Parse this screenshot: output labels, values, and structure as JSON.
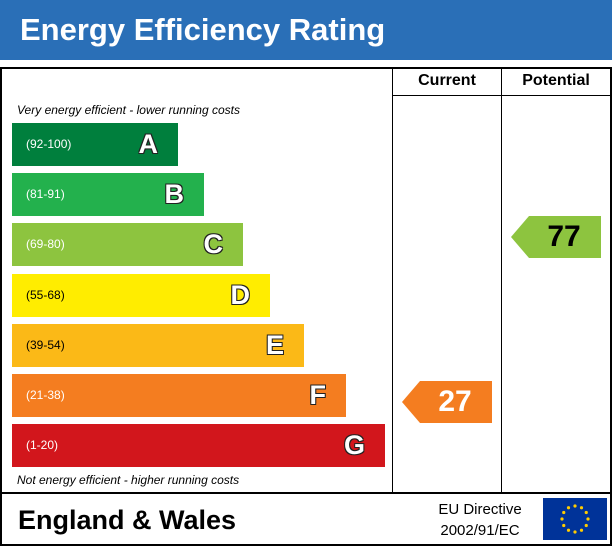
{
  "title": "Energy Efficiency Rating",
  "columns": {
    "current": "Current",
    "potential": "Potential"
  },
  "notes": {
    "top": "Very energy efficient - lower running costs",
    "bottom": "Not energy efficient - higher running costs"
  },
  "chart_data": {
    "type": "bar",
    "categories": [
      "A",
      "B",
      "C",
      "D",
      "E",
      "F",
      "G"
    ],
    "ranges": [
      "(92-100)",
      "(81-91)",
      "(69-80)",
      "(55-68)",
      "(39-54)",
      "(21-38)",
      "(1-20)"
    ],
    "colors": [
      "#007f3d",
      "#23b14d",
      "#8dc43f",
      "#ffed00",
      "#fbb917",
      "#f47d20",
      "#d2161c"
    ],
    "current": {
      "value": 27,
      "band": "F",
      "color": "#f47d20"
    },
    "potential": {
      "value": 77,
      "band": "C",
      "color": "#8dc43f"
    }
  },
  "footer": {
    "region": "England & Wales",
    "directive_line1": "EU Directive",
    "directive_line2": "2002/91/EC"
  },
  "flag": {
    "background": "#003399",
    "stars": "#ffcc00"
  }
}
